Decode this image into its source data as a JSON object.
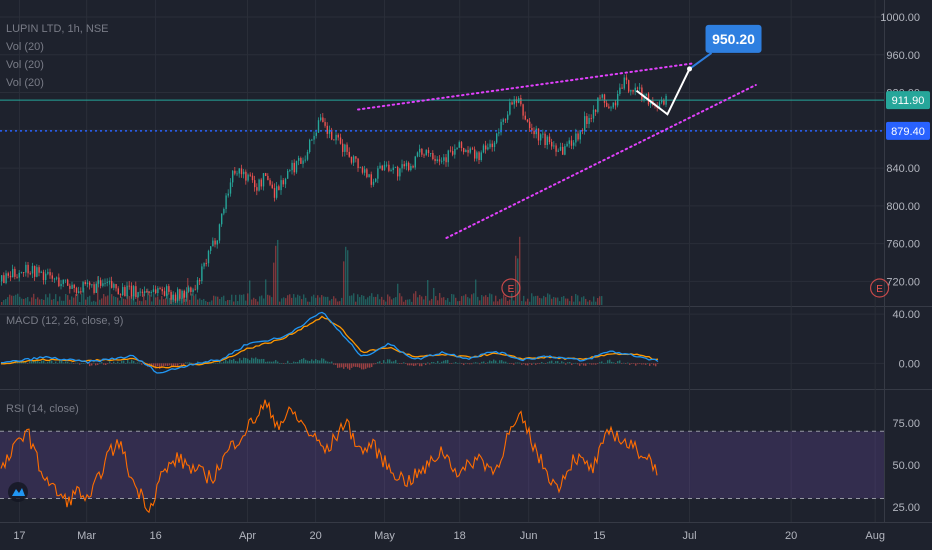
{
  "header": {
    "symbol_line": "LUPIN LTD, 1h, NSE",
    "indicators": [
      "Vol (20)",
      "Vol (20)",
      "Vol (20)"
    ]
  },
  "colors": {
    "background": "#1e222d",
    "grid": "#2a2e39",
    "up": "#26a69a",
    "down": "#ef5350",
    "trendline": "#e040fb",
    "price_line": "#26a69a",
    "level_line": "#2962ff",
    "macd_line": "#2196f3",
    "signal_line": "#ff9800",
    "rsi_line": "#ff6d00",
    "rsi_band": "#7e57c2",
    "target_label": "#2e7fe0"
  },
  "icons": {
    "logo": "tradingview-logo-icon",
    "earnings": "earnings-marker-icon"
  },
  "chart_data": [
    {
      "type": "candlestick",
      "panel": "price",
      "title": "LUPIN LTD, 1h, NSE",
      "y_ticks": [
        "1000.00",
        "960.00",
        "920.00",
        "880.00",
        "840.00",
        "800.00",
        "760.00",
        "720.00"
      ],
      "ylim": [
        695,
        1018
      ],
      "x_ticks": [
        "17",
        "Mar",
        "16",
        "Apr",
        "20",
        "May",
        "18",
        "Jun",
        "15",
        "Jul",
        "20",
        "Aug"
      ],
      "price_path": [
        [
          0,
          720
        ],
        [
          0.03,
          735
        ],
        [
          0.06,
          722
        ],
        [
          0.09,
          712
        ],
        [
          0.12,
          716
        ],
        [
          0.15,
          708
        ],
        [
          0.18,
          712
        ],
        [
          0.2,
          705
        ],
        [
          0.22,
          710
        ],
        [
          0.23,
          735
        ],
        [
          0.245,
          770
        ],
        [
          0.255,
          810
        ],
        [
          0.265,
          840
        ],
        [
          0.28,
          830
        ],
        [
          0.29,
          820
        ],
        [
          0.3,
          832
        ],
        [
          0.31,
          815
        ],
        [
          0.33,
          840
        ],
        [
          0.345,
          855
        ],
        [
          0.36,
          890
        ],
        [
          0.375,
          872
        ],
        [
          0.39,
          860
        ],
        [
          0.41,
          838
        ],
        [
          0.42,
          828
        ],
        [
          0.435,
          846
        ],
        [
          0.45,
          835
        ],
        [
          0.465,
          845
        ],
        [
          0.48,
          860
        ],
        [
          0.5,
          850
        ],
        [
          0.52,
          862
        ],
        [
          0.54,
          852
        ],
        [
          0.56,
          870
        ],
        [
          0.575,
          905
        ],
        [
          0.585,
          910
        ],
        [
          0.6,
          880
        ],
        [
          0.615,
          870
        ],
        [
          0.635,
          860
        ],
        [
          0.65,
          872
        ],
        [
          0.665,
          895
        ],
        [
          0.68,
          915
        ],
        [
          0.69,
          900
        ],
        [
          0.705,
          930
        ],
        [
          0.72,
          922
        ],
        [
          0.735,
          912
        ],
        [
          0.745,
          905
        ],
        [
          0.755,
          912
        ]
      ],
      "levels": {
        "last_price": "911.90",
        "horizontal_level": "879.40",
        "target": "950.20"
      },
      "upper_trendline": [
        [
          0.405,
          902
        ],
        [
          0.785,
          951
        ]
      ],
      "lower_trendline": [
        [
          0.505,
          766
        ],
        [
          0.855,
          928
        ]
      ],
      "projection": [
        [
          0.72,
          922
        ],
        [
          0.755,
          897
        ],
        [
          0.78,
          945
        ]
      ],
      "earnings_markers": [
        "E",
        "E"
      ]
    },
    {
      "type": "line",
      "panel": "macd",
      "title": "MACD (12, 26, close, 9)",
      "y_ticks": [
        "40.00",
        "0.00"
      ],
      "ylim": [
        -20,
        45
      ],
      "series": [
        {
          "role": "macd",
          "values": [
            [
              0,
              0
            ],
            [
              0.05,
              5
            ],
            [
              0.1,
              1
            ],
            [
              0.15,
              6
            ],
            [
              0.18,
              -8
            ],
            [
              0.22,
              0
            ],
            [
              0.25,
              3
            ],
            [
              0.28,
              16
            ],
            [
              0.32,
              21
            ],
            [
              0.345,
              33
            ],
            [
              0.365,
              42
            ],
            [
              0.385,
              25
            ],
            [
              0.41,
              5
            ],
            [
              0.44,
              16
            ],
            [
              0.47,
              3
            ],
            [
              0.5,
              9
            ],
            [
              0.53,
              4
            ],
            [
              0.56,
              10
            ],
            [
              0.59,
              3
            ],
            [
              0.62,
              6
            ],
            [
              0.66,
              2
            ],
            [
              0.69,
              10
            ],
            [
              0.72,
              6
            ],
            [
              0.745,
              2
            ]
          ]
        },
        {
          "role": "signal",
          "values": [
            [
              0,
              0
            ],
            [
              0.05,
              3
            ],
            [
              0.1,
              2
            ],
            [
              0.15,
              4
            ],
            [
              0.18,
              -4
            ],
            [
              0.22,
              -1
            ],
            [
              0.25,
              2
            ],
            [
              0.28,
              12
            ],
            [
              0.32,
              20
            ],
            [
              0.345,
              30
            ],
            [
              0.365,
              38
            ],
            [
              0.385,
              29
            ],
            [
              0.41,
              9
            ],
            [
              0.44,
              13
            ],
            [
              0.47,
              5
            ],
            [
              0.5,
              7
            ],
            [
              0.53,
              5
            ],
            [
              0.56,
              8
            ],
            [
              0.59,
              4
            ],
            [
              0.62,
              5
            ],
            [
              0.66,
              3
            ],
            [
              0.69,
              8
            ],
            [
              0.72,
              7
            ],
            [
              0.745,
              3
            ]
          ]
        }
      ]
    },
    {
      "type": "line",
      "panel": "rsi",
      "title": "RSI (14, close)",
      "y_ticks": [
        "75.00",
        "50.00",
        "25.00"
      ],
      "ylim": [
        16,
        94
      ],
      "band": [
        30,
        70
      ],
      "values": [
        [
          0,
          45
        ],
        [
          0.02,
          63
        ],
        [
          0.03,
          72
        ],
        [
          0.045,
          48
        ],
        [
          0.06,
          36
        ],
        [
          0.075,
          28
        ],
        [
          0.09,
          35
        ],
        [
          0.1,
          27
        ],
        [
          0.12,
          54
        ],
        [
          0.135,
          64
        ],
        [
          0.15,
          40
        ],
        [
          0.17,
          24
        ],
        [
          0.18,
          42
        ],
        [
          0.2,
          54
        ],
        [
          0.22,
          47
        ],
        [
          0.24,
          42
        ],
        [
          0.26,
          60
        ],
        [
          0.28,
          72
        ],
        [
          0.3,
          86
        ],
        [
          0.315,
          74
        ],
        [
          0.33,
          82
        ],
        [
          0.35,
          69
        ],
        [
          0.37,
          58
        ],
        [
          0.39,
          76
        ],
        [
          0.41,
          57
        ],
        [
          0.42,
          63
        ],
        [
          0.44,
          48
        ],
        [
          0.46,
          40
        ],
        [
          0.48,
          47
        ],
        [
          0.5,
          59
        ],
        [
          0.52,
          44
        ],
        [
          0.54,
          55
        ],
        [
          0.56,
          46
        ],
        [
          0.575,
          68
        ],
        [
          0.59,
          78
        ],
        [
          0.61,
          54
        ],
        [
          0.63,
          36
        ],
        [
          0.65,
          55
        ],
        [
          0.67,
          47
        ],
        [
          0.69,
          71
        ],
        [
          0.71,
          62
        ],
        [
          0.73,
          56
        ],
        [
          0.745,
          47
        ]
      ]
    }
  ]
}
